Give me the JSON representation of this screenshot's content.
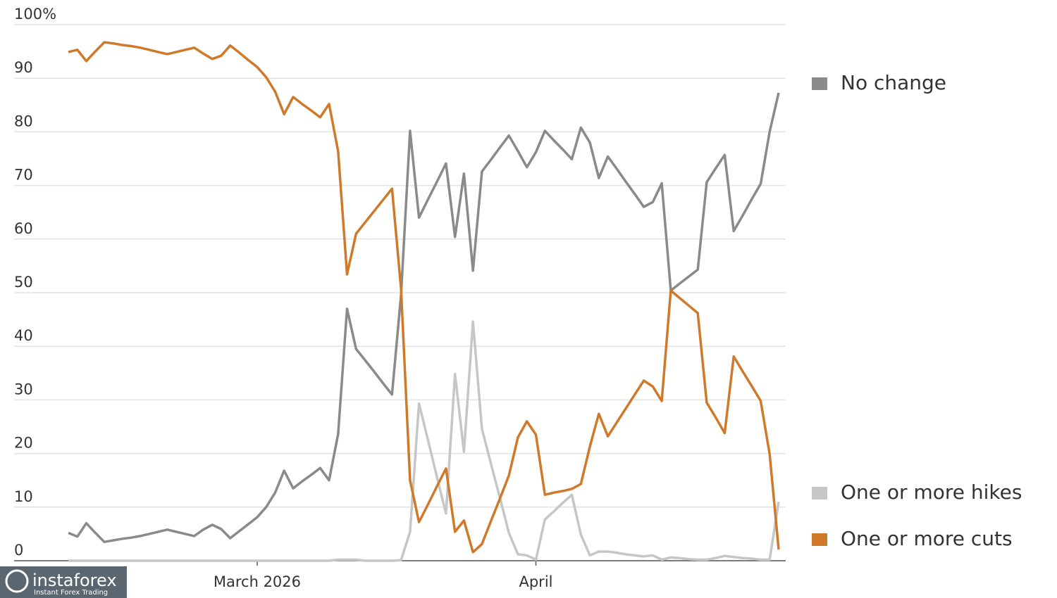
{
  "chart_data": {
    "type": "line",
    "categories": [
      null,
      null,
      null,
      null,
      null,
      null,
      null,
      null,
      null,
      null,
      null,
      null,
      null,
      null,
      null,
      null,
      null,
      null,
      null,
      null,
      null,
      "March 2026",
      null,
      null,
      null,
      null,
      null,
      null,
      null,
      null,
      null,
      null,
      null,
      null,
      null,
      null,
      null,
      null,
      null,
      null,
      null,
      null,
      null,
      null,
      null,
      null,
      null,
      null,
      null,
      null,
      null,
      null,
      "April",
      null,
      null,
      null,
      null,
      null,
      null,
      null,
      null,
      null,
      null,
      null,
      null,
      null,
      null,
      null,
      null,
      null,
      null,
      null,
      null,
      null,
      null,
      null,
      null,
      null,
      null,
      null
    ],
    "series": [
      {
        "name": "No change",
        "color": "#8a8a8a",
        "values": [
          5.2,
          4.5,
          7.0,
          5.2,
          3.5,
          3.8,
          4.1,
          4.3,
          4.6,
          5.0,
          5.4,
          5.8,
          5.4,
          5.0,
          4.6,
          5.8,
          6.7,
          5.9,
          4.2,
          5.5,
          6.8,
          8.1,
          10.0,
          12.7,
          16.8,
          13.5,
          14.8,
          16.0,
          17.3,
          15.0,
          23.6,
          47.0,
          39.5,
          37.4,
          35.3,
          33.1,
          31.0,
          49.5,
          80.2,
          64.0,
          67.4,
          70.7,
          74.1,
          60.4,
          72.2,
          54.1,
          72.6,
          74.8,
          77.1,
          79.3,
          76.4,
          73.4,
          76.2,
          80.2,
          78.4,
          76.7,
          74.9,
          80.8,
          78.0,
          71.4,
          75.4,
          73.1,
          70.7,
          68.4,
          66.0,
          66.9,
          70.4,
          50.4,
          51.7,
          53.0,
          54.3,
          70.6,
          73.2,
          75.7,
          61.5,
          64.4,
          67.4,
          70.3,
          80.0,
          87.3
        ]
      },
      {
        "name": "One or more hikes",
        "color": "#c6c6c6",
        "values": [
          0,
          0,
          0,
          0,
          0,
          0,
          0,
          0,
          0,
          0,
          0,
          0,
          0,
          0,
          0,
          0,
          0,
          0,
          0,
          0,
          0,
          0,
          0,
          0,
          0,
          0,
          0,
          0,
          0,
          0,
          0.2,
          0.2,
          0.2,
          0,
          0,
          0,
          0,
          0.1,
          5.4,
          29.3,
          22.5,
          15.6,
          8.8,
          34.8,
          20.3,
          44.6,
          24.6,
          18.1,
          11.7,
          5.2,
          1.2,
          1.0,
          0.2,
          7.7,
          9.2,
          10.8,
          12.3,
          4.9,
          1.0,
          1.7,
          1.7,
          1.5,
          1.2,
          1.0,
          0.8,
          1.0,
          0.2,
          0.6,
          0.5,
          0.3,
          0.2,
          0.2,
          0.5,
          0.9,
          0.7,
          0.5,
          0.4,
          0.2,
          0.2,
          11.0
        ]
      },
      {
        "name": "One or more cuts",
        "color": "#cf7a2b",
        "values": [
          94.9,
          95.3,
          93.2,
          95.0,
          96.7,
          96.5,
          96.2,
          96.0,
          95.7,
          95.3,
          94.9,
          94.5,
          94.9,
          95.3,
          95.7,
          94.6,
          93.6,
          94.2,
          96.1,
          94.8,
          93.4,
          92.1,
          90.2,
          87.5,
          83.3,
          86.5,
          85.2,
          84.0,
          82.7,
          85.2,
          76.4,
          53.4,
          61.0,
          63.1,
          65.2,
          67.3,
          69.4,
          50.8,
          15.0,
          7.2,
          10.5,
          13.9,
          17.2,
          5.4,
          7.5,
          1.6,
          3.1,
          7.4,
          11.6,
          15.9,
          23.0,
          26.0,
          23.5,
          12.3,
          12.7,
          13.0,
          13.4,
          14.3,
          21.3,
          27.4,
          23.2,
          25.8,
          28.4,
          31.0,
          33.6,
          32.5,
          29.8,
          50.4,
          49.0,
          47.6,
          46.2,
          29.5,
          26.7,
          23.8,
          38.1,
          35.3,
          32.6,
          29.8,
          19.9,
          2.1
        ]
      }
    ],
    "ylim": [
      0,
      100
    ],
    "yticks": [
      0,
      10,
      20,
      30,
      40,
      50,
      60,
      70,
      80,
      90,
      {
        "value": 100,
        "label": "100%"
      }
    ],
    "grid": true,
    "legend": "right"
  },
  "watermark": {
    "brand": "instaforex",
    "tagline": "Instant Forex Trading"
  }
}
